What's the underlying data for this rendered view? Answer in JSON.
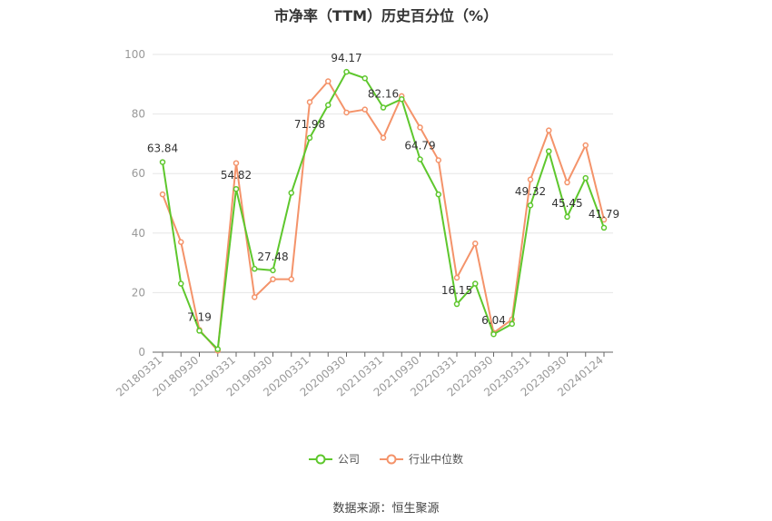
{
  "title": "市净率（TTM）历史百分位（%）",
  "source": "数据来源：恒生聚源",
  "colors": {
    "company": "#5ec72d",
    "industry": "#f4936a",
    "grid": "#e6e6e6",
    "axis": "#666666",
    "tick": "#999999"
  },
  "chart_data": {
    "type": "line",
    "title": "市净率（TTM）历史百分位（%）",
    "ylim": [
      0,
      100
    ],
    "y_ticks": [
      0,
      20,
      40,
      60,
      80,
      100
    ],
    "x_tick_labels": [
      "20180331",
      "20180930",
      "20190331",
      "20190930",
      "20200331",
      "20200930",
      "20210331",
      "20210930",
      "20220331",
      "20220930",
      "20230331",
      "20230930",
      "20240124"
    ],
    "x": [
      "20180331",
      "20180630",
      "20180930",
      "20181231",
      "20190331",
      "20190630",
      "20190930",
      "20191231",
      "20200331",
      "20200630",
      "20200930",
      "20201231",
      "20210331",
      "20210630",
      "20210930",
      "20211231",
      "20220331",
      "20220630",
      "20220930",
      "20221231",
      "20230331",
      "20230630",
      "20230930",
      "20231231",
      "20240124"
    ],
    "series": [
      {
        "name": "公司",
        "values": [
          63.84,
          23.0,
          7.19,
          1.0,
          54.82,
          28.0,
          27.48,
          53.5,
          71.98,
          83.0,
          94.17,
          92.0,
          82.16,
          85.0,
          64.79,
          53.0,
          16.15,
          23.0,
          6.04,
          9.5,
          49.32,
          67.5,
          45.45,
          58.5,
          41.79
        ]
      },
      {
        "name": "行业中位数",
        "values": [
          53.0,
          37.0,
          7.5,
          0.5,
          63.5,
          18.5,
          24.5,
          24.5,
          84.0,
          91.0,
          80.5,
          81.5,
          72.0,
          86.0,
          75.5,
          64.5,
          25.0,
          36.5,
          6.5,
          11.0,
          58.0,
          74.5,
          57.0,
          69.5,
          44.5
        ]
      }
    ],
    "data_labels": [
      {
        "index": 0,
        "text": "63.84"
      },
      {
        "index": 2,
        "text": "7.19"
      },
      {
        "index": 4,
        "text": "54.82"
      },
      {
        "index": 6,
        "text": "27.48"
      },
      {
        "index": 8,
        "text": "71.98"
      },
      {
        "index": 10,
        "text": "94.17"
      },
      {
        "index": 12,
        "text": "82.16"
      },
      {
        "index": 14,
        "text": "64.79"
      },
      {
        "index": 16,
        "text": "16.15"
      },
      {
        "index": 18,
        "text": "6.04"
      },
      {
        "index": 20,
        "text": "49.32"
      },
      {
        "index": 22,
        "text": "45.45"
      },
      {
        "index": 24,
        "text": "41.79"
      }
    ],
    "legend_placement": "bottom-center",
    "grid": true
  }
}
